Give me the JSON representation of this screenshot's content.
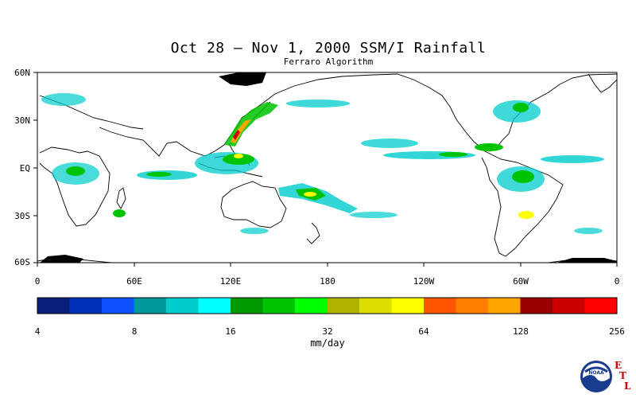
{
  "title": "Oct 28 – Nov 1, 2000 SSM/I Rainfall",
  "subtitle": "Ferraro Algorithm",
  "lat_labels": [
    "60N",
    "30N",
    "EQ",
    "30S",
    "60S"
  ],
  "lon_labels": [
    "0",
    "60E",
    "120E",
    "180",
    "120W",
    "60W",
    "0"
  ],
  "colorbar": {
    "ticks": [
      "4",
      "8",
      "16",
      "32",
      "64",
      "128",
      "256"
    ],
    "units": "mm/day",
    "colors": [
      "#0a1d78",
      "#0030b8",
      "#0f50ff",
      "#00999a",
      "#00cccc",
      "#00ffff",
      "#009900",
      "#00c300",
      "#00ff00",
      "#b2b200",
      "#dddd00",
      "#ffff00",
      "#ff5500",
      "#ff7f00",
      "#ffa500",
      "#990000",
      "#cc0000",
      "#ff0000"
    ]
  },
  "logo": {
    "text": "NOAA",
    "etl": [
      "E",
      "T",
      "L"
    ]
  }
}
